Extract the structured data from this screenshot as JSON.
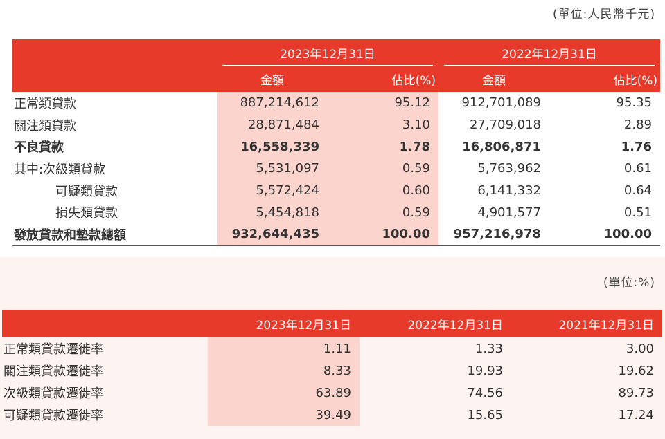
{
  "unit1": "(單位:人民幣千元)",
  "table1": {
    "year_headers": [
      "2023年12月31日",
      "2022年12月31日"
    ],
    "sub_headers": [
      "金額",
      "佔比(%)",
      "金額",
      "佔比(%)"
    ],
    "rows": [
      {
        "label": "正常類貸款",
        "a1": "887,214,612",
        "p1": "95.12",
        "a2": "912,701,089",
        "p2": "95.35",
        "bold": false,
        "indent": false
      },
      {
        "label": "關注類貸款",
        "a1": "28,871,484",
        "p1": "3.10",
        "a2": "27,709,018",
        "p2": "2.89",
        "bold": false,
        "indent": false
      },
      {
        "label": "不良貸款",
        "a1": "16,558,339",
        "p1": "1.78",
        "a2": "16,806,871",
        "p2": "1.76",
        "bold": true,
        "indent": false
      },
      {
        "label": "其中:次級類貸款",
        "a1": "5,531,097",
        "p1": "0.59",
        "a2": "5,763,962",
        "p2": "0.61",
        "bold": false,
        "indent": false
      },
      {
        "label": "可疑類貸款",
        "a1": "5,572,424",
        "p1": "0.60",
        "a2": "6,141,332",
        "p2": "0.64",
        "bold": false,
        "indent": true
      },
      {
        "label": "損失類貸款",
        "a1": "5,454,818",
        "p1": "0.59",
        "a2": "4,901,577",
        "p2": "0.51",
        "bold": false,
        "indent": true
      },
      {
        "label": "發放貸款和墊款總額",
        "a1": "932,644,435",
        "p1": "100.00",
        "a2": "957,216,978",
        "p2": "100.00",
        "bold": true,
        "indent": false
      }
    ]
  },
  "unit2": "(單位:%)",
  "table2": {
    "headers": [
      "2023年12月31日",
      "2022年12月31日",
      "2021年12月31日"
    ],
    "rows": [
      {
        "label": "正常類貸款遷徙率",
        "v1": "1.11",
        "v2": "1.33",
        "v3": "3.00"
      },
      {
        "label": "關注類貸款遷徙率",
        "v1": "8.33",
        "v2": "19.93",
        "v3": "19.62"
      },
      {
        "label": "次級類貸款遷徙率",
        "v1": "63.89",
        "v2": "74.56",
        "v3": "89.73"
      },
      {
        "label": "可疑類貸款遷徙率",
        "v1": "39.49",
        "v2": "15.65",
        "v3": "17.24"
      }
    ]
  }
}
